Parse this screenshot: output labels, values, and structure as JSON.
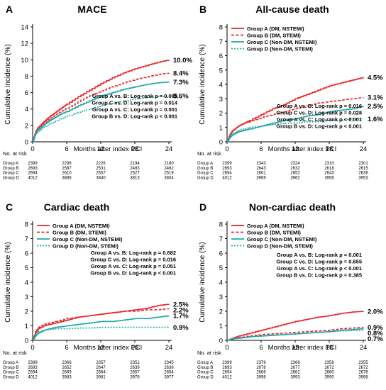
{
  "figure": {
    "colors": {
      "groupA": "#e8262b",
      "groupB": "#e8262b",
      "groupC": "#1aa9a6",
      "groupD": "#1aa9a6",
      "axis": "#000000"
    }
  },
  "chart_data": [
    {
      "type": "line",
      "panel_letter": "A",
      "title": "MACE",
      "xlabel": "Months after index PCI",
      "ylabel": "Cumulative incidence (%)",
      "xlim": [
        0,
        24
      ],
      "ylim": [
        0,
        14
      ],
      "xticks": [
        0,
        6,
        12,
        18,
        24
      ],
      "yticks": [
        0,
        2,
        4,
        6,
        8,
        10,
        12,
        14
      ],
      "legend": {
        "position": "none",
        "entries": []
      },
      "series": [
        {
          "name": "Group A (DM, NSTEMI)",
          "color": "#e8262b",
          "dash": "solid",
          "end_label": "10.0%",
          "x": [
            0,
            0.5,
            1,
            2,
            3,
            4,
            5,
            6,
            8,
            10,
            12,
            14,
            16,
            18,
            20,
            22,
            24
          ],
          "y": [
            0,
            1.2,
            1.8,
            2.5,
            3.1,
            3.6,
            4.1,
            4.6,
            5.5,
            6.3,
            7.1,
            7.8,
            8.4,
            8.9,
            9.3,
            9.7,
            10.0
          ]
        },
        {
          "name": "Group B (DM, STEMI)",
          "color": "#e8262b",
          "dash": "dashed",
          "end_label": "8.4%",
          "x": [
            0,
            0.5,
            1,
            2,
            3,
            4,
            5,
            6,
            8,
            10,
            12,
            14,
            16,
            18,
            20,
            22,
            24
          ],
          "y": [
            0,
            1.1,
            1.7,
            2.3,
            2.8,
            3.3,
            3.7,
            4.1,
            4.9,
            5.6,
            6.2,
            6.7,
            7.2,
            7.6,
            7.9,
            8.2,
            8.4
          ]
        },
        {
          "name": "Group C (Non-DM, NSTEMI)",
          "color": "#1aa9a6",
          "dash": "solid",
          "end_label": "7.3%",
          "x": [
            0,
            0.5,
            1,
            2,
            3,
            4,
            5,
            6,
            8,
            10,
            12,
            14,
            16,
            18,
            20,
            22,
            24
          ],
          "y": [
            0,
            1.0,
            1.5,
            2.1,
            2.6,
            3.0,
            3.4,
            3.7,
            4.4,
            5.0,
            5.6,
            6.0,
            6.4,
            6.7,
            7.0,
            7.2,
            7.3
          ]
        },
        {
          "name": "Group D (Non-DM, STEMI)",
          "color": "#1aa9a6",
          "dash": "dotted",
          "end_label": "5.6%",
          "x": [
            0,
            0.5,
            1,
            2,
            3,
            4,
            5,
            6,
            8,
            10,
            12,
            14,
            16,
            18,
            20,
            22,
            24
          ],
          "y": [
            0,
            0.9,
            1.3,
            1.8,
            2.2,
            2.5,
            2.8,
            3.1,
            3.6,
            4.0,
            4.4,
            4.7,
            5.0,
            5.2,
            5.4,
            5.5,
            5.6
          ]
        }
      ],
      "stats": [
        "Group A vs. B: Log-rank p = 0.069",
        "Group C vs. D: Log-rank p = 0.014",
        "Group A vs. C: Log-rank p = 0.001",
        "Group B vs. D: Log-rank p < 0.001"
      ],
      "at_risk": {
        "title": "No. at risk",
        "rows": [
          {
            "group": "Group A",
            "counts": [
              "2399",
              "2296",
              "2226",
              "2194",
              "2180"
            ]
          },
          {
            "group": "Group B",
            "counts": [
              "2693",
              "2587",
              "2531",
              "2493",
              "2462"
            ]
          },
          {
            "group": "Group C",
            "counts": [
              "2694",
              "2610",
              "2557",
              "2527",
              "2519"
            ]
          },
          {
            "group": "Group D",
            "counts": [
              "4012",
              "3886",
              "3840",
              "3813",
              "3804"
            ]
          }
        ]
      }
    },
    {
      "type": "line",
      "panel_letter": "B",
      "title": "All-cause death",
      "xlabel": "Months after index PCI",
      "ylabel": "Cumulative incidence (%)",
      "xlim": [
        0,
        24
      ],
      "ylim": [
        0,
        8
      ],
      "xticks": [
        0,
        6,
        12,
        18,
        24
      ],
      "yticks": [
        0,
        1,
        2,
        3,
        4,
        5,
        6,
        7,
        8
      ],
      "legend": {
        "position": "top-left",
        "entries": [
          "Group A (DM, NSTEMI)",
          "Group B (DM, STEMI)",
          "Group C (Non-DM, NSTEMI)",
          "Group D (Non-DM, STEMI)"
        ]
      },
      "series": [
        {
          "name": "Group A (DM, NSTEMI)",
          "color": "#e8262b",
          "dash": "solid",
          "end_label": "4.5%",
          "x": [
            0,
            0.5,
            1,
            2,
            3,
            4,
            6,
            8,
            10,
            12,
            14,
            16,
            18,
            20,
            22,
            24
          ],
          "y": [
            0,
            0.5,
            0.8,
            1.1,
            1.3,
            1.5,
            1.9,
            2.3,
            2.6,
            3.0,
            3.3,
            3.6,
            3.9,
            4.1,
            4.3,
            4.5
          ]
        },
        {
          "name": "Group B (DM, STEMI)",
          "color": "#e8262b",
          "dash": "dashed",
          "end_label": "3.1%",
          "x": [
            0,
            0.5,
            1,
            2,
            3,
            4,
            6,
            8,
            10,
            12,
            14,
            16,
            18,
            20,
            22,
            24
          ],
          "y": [
            0,
            0.5,
            0.8,
            1.1,
            1.3,
            1.4,
            1.7,
            1.9,
            2.1,
            2.3,
            2.5,
            2.7,
            2.8,
            2.9,
            3.0,
            3.1
          ]
        },
        {
          "name": "Group C (Non-DM, NSTEMI)",
          "color": "#1aa9a6",
          "dash": "solid",
          "end_label": "2.5%",
          "x": [
            0,
            0.5,
            1,
            2,
            3,
            4,
            6,
            8,
            10,
            12,
            14,
            16,
            18,
            20,
            22,
            24
          ],
          "y": [
            0,
            0.3,
            0.5,
            0.7,
            0.8,
            0.9,
            1.1,
            1.3,
            1.5,
            1.6,
            1.8,
            1.9,
            2.1,
            2.2,
            2.3,
            2.5
          ]
        },
        {
          "name": "Group D (Non-DM, STEMI)",
          "color": "#1aa9a6",
          "dash": "dotted",
          "end_label": "1.6%",
          "x": [
            0,
            0.5,
            1,
            2,
            3,
            4,
            6,
            8,
            10,
            12,
            14,
            16,
            18,
            20,
            22,
            24
          ],
          "y": [
            0,
            0.4,
            0.6,
            0.8,
            0.9,
            1.0,
            1.1,
            1.2,
            1.3,
            1.3,
            1.4,
            1.4,
            1.5,
            1.5,
            1.6,
            1.6
          ]
        }
      ],
      "stats": [
        "Group A vs. B: Log-rank p = 0.016",
        "Group C vs. D: Log-rank p = 0.028",
        "Group A vs. C: Log-rank p < 0.001",
        "Group B vs. D: Log-rank p < 0.001"
      ],
      "at_risk": {
        "title": "No. at risk",
        "rows": [
          {
            "group": "Group A",
            "counts": [
              "2399",
              "2343",
              "2324",
              "2310",
              "2301"
            ]
          },
          {
            "group": "Group B",
            "counts": [
              "2693",
              "2643",
              "2632",
              "2618",
              "2615"
            ]
          },
          {
            "group": "Group C",
            "counts": [
              "2694",
              "2661",
              "2652",
              "2643",
              "2636"
            ]
          },
          {
            "group": "Group D",
            "counts": [
              "4012",
              "3969",
              "3962",
              "3956",
              "3953"
            ]
          }
        ]
      }
    },
    {
      "type": "line",
      "panel_letter": "C",
      "title": "Cardiac death",
      "xlabel": "Months after index PCI",
      "ylabel": "Cumulative incidence (%)",
      "xlim": [
        0,
        24
      ],
      "ylim": [
        0,
        8
      ],
      "xticks": [
        0,
        6,
        12,
        18,
        24
      ],
      "yticks": [
        0,
        1,
        2,
        3,
        4,
        5,
        6,
        7,
        8
      ],
      "legend": {
        "position": "top-left",
        "entries": [
          "Group A (DM, NSTEMI)",
          "Group B (DM, STEMI)",
          "Group C (Non-DM, NSTEMI)",
          "Group D (Non-DM, STEMI)"
        ]
      },
      "series": [
        {
          "name": "Group A (DM, NSTEMI)",
          "color": "#e8262b",
          "dash": "solid",
          "end_label": "2.5%",
          "x": [
            0,
            0.5,
            1,
            2,
            3,
            4,
            6,
            8,
            10,
            12,
            14,
            16,
            18,
            20,
            22,
            24
          ],
          "y": [
            0,
            0.5,
            0.8,
            1.0,
            1.1,
            1.2,
            1.4,
            1.6,
            1.7,
            1.8,
            1.9,
            2.0,
            2.1,
            2.2,
            2.4,
            2.5
          ]
        },
        {
          "name": "Group B (DM, STEMI)",
          "color": "#e8262b",
          "dash": "dashed",
          "end_label": "2.2%",
          "x": [
            0,
            0.5,
            1,
            2,
            3,
            4,
            6,
            8,
            10,
            12,
            14,
            16,
            18,
            20,
            22,
            24
          ],
          "y": [
            0,
            0.6,
            0.9,
            1.1,
            1.2,
            1.3,
            1.5,
            1.6,
            1.7,
            1.8,
            1.9,
            2.0,
            2.0,
            2.1,
            2.1,
            2.2
          ]
        },
        {
          "name": "Group C (Non-DM, NSTEMI)",
          "color": "#1aa9a6",
          "dash": "solid",
          "end_label": "1.7%",
          "x": [
            0,
            0.5,
            1,
            2,
            3,
            4,
            6,
            8,
            10,
            12,
            14,
            16,
            18,
            20,
            22,
            24
          ],
          "y": [
            0,
            0.3,
            0.5,
            0.7,
            0.8,
            0.9,
            1.0,
            1.1,
            1.2,
            1.3,
            1.3,
            1.4,
            1.5,
            1.5,
            1.6,
            1.7
          ]
        },
        {
          "name": "Group D (Non-DM, STEMI)",
          "color": "#1aa9a6",
          "dash": "dotted",
          "end_label": "0.9%",
          "x": [
            0,
            0.5,
            1,
            2,
            3,
            4,
            6,
            8,
            10,
            12,
            14,
            16,
            18,
            20,
            22,
            24
          ],
          "y": [
            0,
            0.4,
            0.6,
            0.7,
            0.75,
            0.8,
            0.8,
            0.85,
            0.85,
            0.9,
            0.9,
            0.9,
            0.9,
            0.9,
            0.9,
            0.9
          ]
        }
      ],
      "stats": [
        "Group A vs. B: Log-rank p = 0.682",
        "Group C vs. D: Log-rank p = 0.016",
        "Group A vs. C: Log-rank p = 0.051",
        "Group B vs. D: Log-rank p < 0.001"
      ],
      "at_risk": {
        "title": "No. at risk",
        "rows": [
          {
            "group": "Group A",
            "counts": [
              "2399",
              "2366",
              "2357",
              "2351",
              "2345"
            ]
          },
          {
            "group": "Group B",
            "counts": [
              "2693",
              "2652",
              "2647",
              "2639",
              "2636"
            ]
          },
          {
            "group": "Group C",
            "counts": [
              "2694",
              "2669",
              "2664",
              "2657",
              "2654"
            ]
          },
          {
            "group": "Group D",
            "counts": [
              "4012",
              "3983",
              "3981",
              "3978",
              "3977"
            ]
          }
        ]
      }
    },
    {
      "type": "line",
      "panel_letter": "D",
      "title": "Non-cardiac death",
      "xlabel": "Months after index PCI",
      "ylabel": "Cumulative incidence (%)",
      "xlim": [
        0,
        24
      ],
      "ylim": [
        0,
        8
      ],
      "xticks": [
        0,
        6,
        12,
        18,
        24
      ],
      "yticks": [
        0,
        1,
        2,
        3,
        4,
        5,
        6,
        7,
        8
      ],
      "legend": {
        "position": "top-left",
        "entries": [
          "Group A (DM, NSTEMI)",
          "Group B (DM, STEMI)",
          "Group C (Non-DM, NSTEMI)",
          "Group D (Non-DM, STEMI)"
        ]
      },
      "series": [
        {
          "name": "Group A (DM, NSTEMI)",
          "color": "#e8262b",
          "dash": "solid",
          "end_label": "2.0%",
          "x": [
            0,
            1,
            2,
            4,
            6,
            8,
            10,
            12,
            14,
            16,
            18,
            20,
            22,
            24
          ],
          "y": [
            0,
            0.15,
            0.3,
            0.5,
            0.7,
            0.9,
            1.1,
            1.3,
            1.45,
            1.6,
            1.7,
            1.85,
            1.95,
            2.0
          ]
        },
        {
          "name": "Group B (DM, STEMI)",
          "color": "#e8262b",
          "dash": "dashed",
          "end_label": "0.9%",
          "x": [
            0,
            1,
            2,
            4,
            6,
            8,
            10,
            12,
            14,
            16,
            18,
            20,
            22,
            24
          ],
          "y": [
            0,
            0.1,
            0.2,
            0.3,
            0.4,
            0.45,
            0.5,
            0.55,
            0.6,
            0.65,
            0.7,
            0.8,
            0.85,
            0.9
          ]
        },
        {
          "name": "Group C (Non-DM, NSTEMI)",
          "color": "#1aa9a6",
          "dash": "solid",
          "end_label": "0.8%",
          "x": [
            0,
            1,
            2,
            4,
            6,
            8,
            10,
            12,
            14,
            16,
            18,
            20,
            22,
            24
          ],
          "y": [
            0,
            0.1,
            0.15,
            0.25,
            0.3,
            0.35,
            0.4,
            0.45,
            0.5,
            0.55,
            0.6,
            0.7,
            0.75,
            0.8
          ]
        },
        {
          "name": "Group D (Non-DM, STEMI)",
          "color": "#1aa9a6",
          "dash": "dotted",
          "end_label": "0.7%",
          "x": [
            0,
            1,
            2,
            4,
            6,
            8,
            10,
            12,
            14,
            16,
            18,
            20,
            22,
            24
          ],
          "y": [
            0,
            0.1,
            0.15,
            0.25,
            0.3,
            0.35,
            0.4,
            0.45,
            0.5,
            0.55,
            0.6,
            0.65,
            0.68,
            0.7
          ]
        }
      ],
      "stats": [
        "Group A vs. B: Log-rank p = 0.001",
        "Group C vs. D: Log-rank p = 0.655",
        "Group A vs. C: Log-rank p < 0.001",
        "Group B vs. D: Log-rank p = 0.385"
      ],
      "at_risk": {
        "title": "No. at risk",
        "rows": [
          {
            "group": "Group A",
            "counts": [
              "2399",
              "2376",
              "2366",
              "2358",
              "2355"
            ]
          },
          {
            "group": "Group B",
            "counts": [
              "2693",
              "2678",
              "2677",
              "2672",
              "2672"
            ]
          },
          {
            "group": "Group C",
            "counts": [
              "2694",
              "2686",
              "2682",
              "2680",
              "2676"
            ]
          },
          {
            "group": "Group D",
            "counts": [
              "4012",
              "3998",
              "3993",
              "3990",
              "3988"
            ]
          }
        ]
      }
    }
  ]
}
